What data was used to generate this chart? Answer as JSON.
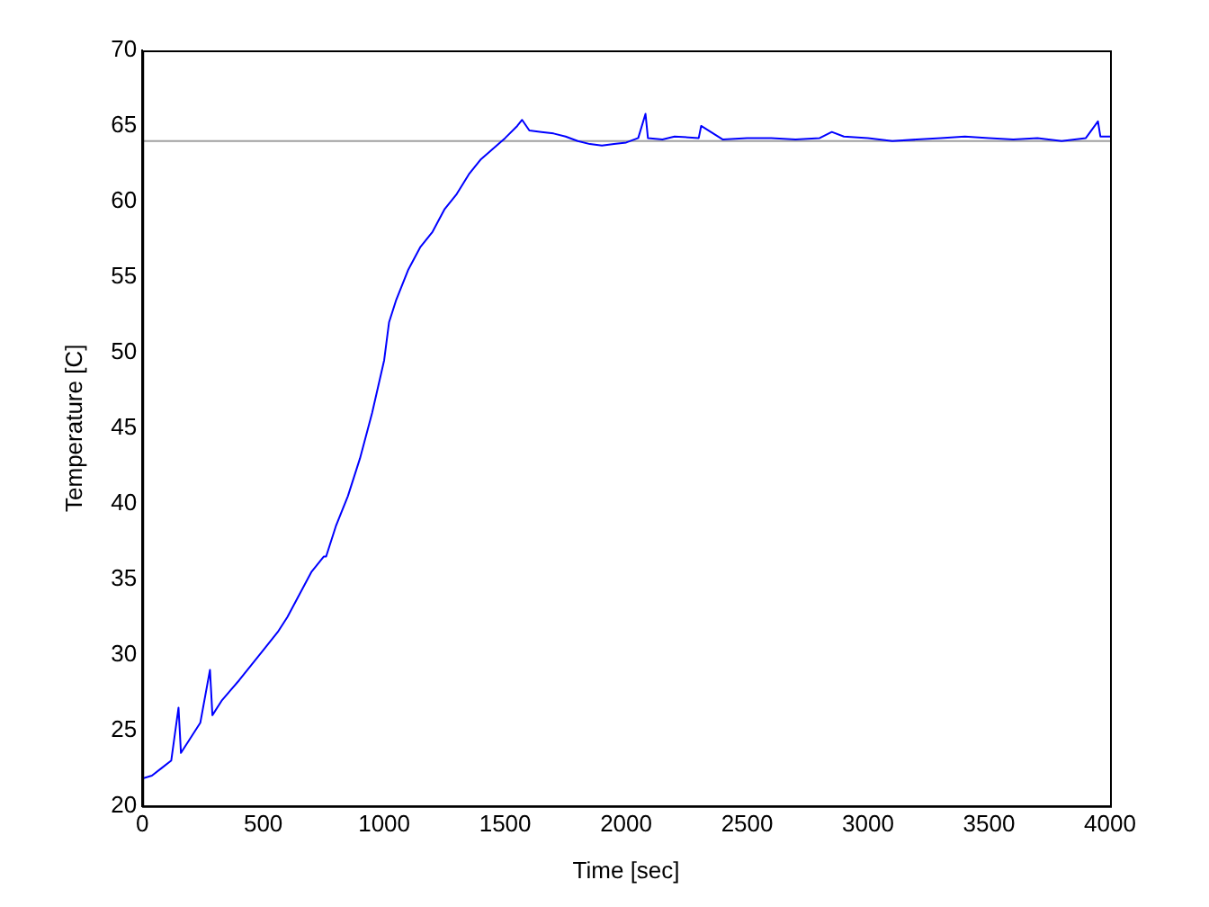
{
  "chart_data": {
    "type": "line",
    "xlabel": "Time [sec]",
    "ylabel": "Temperature [C]",
    "x": [
      0,
      40,
      80,
      120,
      150,
      160,
      200,
      240,
      280,
      290,
      330,
      400,
      450,
      500,
      560,
      600,
      650,
      700,
      750,
      760,
      800,
      850,
      900,
      950,
      1000,
      1020,
      1050,
      1100,
      1150,
      1200,
      1250,
      1300,
      1350,
      1400,
      1450,
      1500,
      1550,
      1570,
      1600,
      1650,
      1700,
      1750,
      1800,
      1850,
      1900,
      1950,
      2000,
      2050,
      2080,
      2090,
      2150,
      2200,
      2300,
      2310,
      2400,
      2500,
      2600,
      2700,
      2800,
      2850,
      2900,
      3000,
      3100,
      3200,
      3300,
      3400,
      3500,
      3600,
      3700,
      3800,
      3900,
      3950,
      3960,
      4000
    ],
    "series": [
      {
        "color": "#0000ff",
        "values": [
          21.8,
          22,
          22.5,
          23,
          26.5,
          23.5,
          24.5,
          25.5,
          29,
          26,
          27,
          28.3,
          29.3,
          30.3,
          31.5,
          32.5,
          34,
          35.5,
          36.5,
          36.5,
          38.5,
          40.5,
          43,
          46,
          49.5,
          52,
          53.5,
          55.5,
          57,
          58,
          59.5,
          60.5,
          61.8,
          62.8,
          63.5,
          64.2,
          65,
          65.4,
          64.7,
          64.6,
          64.5,
          64.3,
          64,
          63.8,
          63.7,
          63.8,
          63.9,
          64.2,
          65.8,
          64.2,
          64.1,
          64.3,
          64.2,
          65,
          64.1,
          64.2,
          64.2,
          64.1,
          64.2,
          64.6,
          64.3,
          64.2,
          64,
          64.1,
          64.2,
          64.3,
          64.2,
          64.1,
          64.2,
          64,
          64.2,
          65.3,
          64.3,
          64.3
        ]
      }
    ],
    "xlim": [
      0,
      4000
    ],
    "xticks": [
      0,
      500,
      1000,
      1500,
      2000,
      2500,
      3000,
      3500,
      4000
    ],
    "ylim": [
      20,
      70
    ],
    "yticks": [
      20,
      25,
      30,
      35,
      40,
      45,
      50,
      55,
      60,
      65,
      70
    ],
    "grid": false,
    "legend": false,
    "marker": "none",
    "line_style": "solid",
    "ref_lines": [
      {
        "axis": "y",
        "value": 64,
        "color": "#a0a0a0"
      }
    ]
  }
}
